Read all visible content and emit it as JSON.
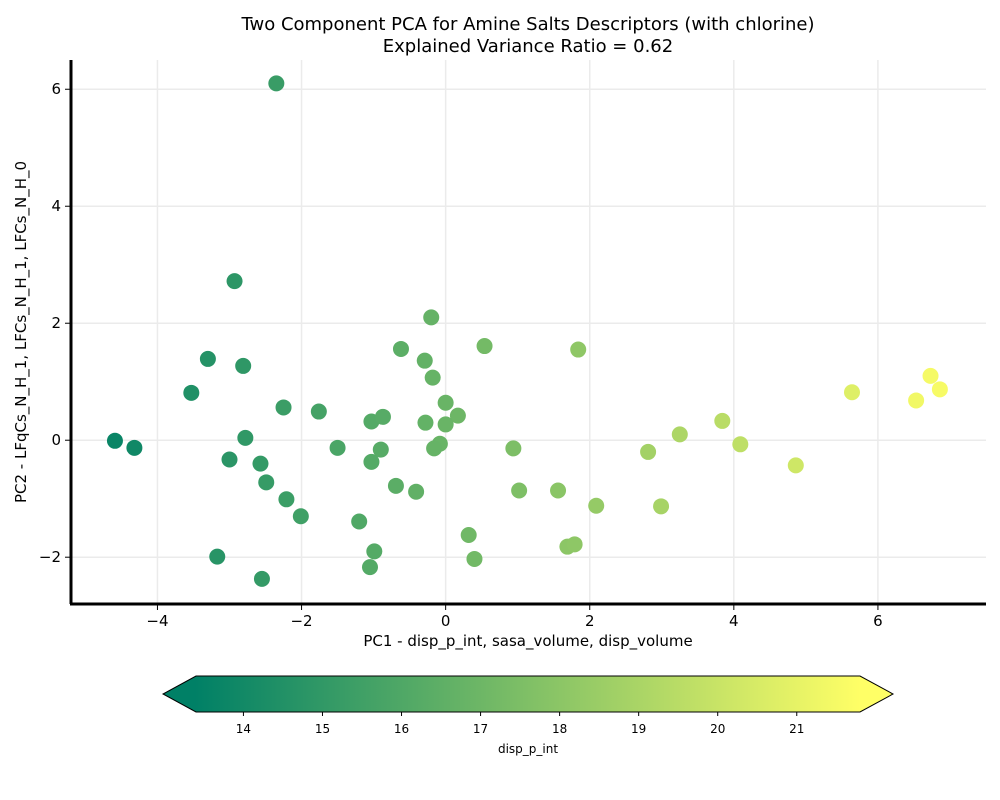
{
  "chart_data": {
    "type": "scatter",
    "title_line1": "Two Component PCA for Amine Salts Descriptors (with chlorine)",
    "title_line2": "Explained Variance Ratio = 0.62",
    "xlabel": "PC1 - disp_p_int, sasa_volume, disp_volume",
    "ylabel": "PC2 - LFqCs_N_H_1, LFCs_N_H_1, LFCs_N_H_0",
    "xlim": [
      -5.2,
      7.5
    ],
    "ylim": [
      -2.8,
      6.5
    ],
    "xticks": [
      -4,
      -2,
      0,
      2,
      4,
      6
    ],
    "yticks": [
      -2,
      0,
      2,
      4,
      6
    ],
    "xtick_labels": [
      "−4",
      "−2",
      "0",
      "2",
      "4",
      "6"
    ],
    "ytick_labels": [
      "−2",
      "0",
      "2",
      "4",
      "6"
    ],
    "grid": true,
    "colorbar": {
      "label": "disp_p_int",
      "colormap": "summer",
      "vmin": 13.4,
      "vmax": 21.8,
      "ticks": [
        14,
        15,
        16,
        17,
        18,
        19,
        20,
        21
      ],
      "tick_labels": [
        "14",
        "15",
        "16",
        "17",
        "18",
        "19",
        "20",
        "21"
      ],
      "color_low": "#008066",
      "color_high": "#ffff66"
    },
    "points": [
      {
        "x": -2.35,
        "y": 6.1
      },
      {
        "x": -2.93,
        "y": 2.72
      },
      {
        "x": -3.3,
        "y": 1.39
      },
      {
        "x": -2.81,
        "y": 1.27
      },
      {
        "x": -3.53,
        "y": 0.81
      },
      {
        "x": -4.59,
        "y": -0.01
      },
      {
        "x": -4.32,
        "y": -0.13
      },
      {
        "x": -2.78,
        "y": 0.04
      },
      {
        "x": -3.0,
        "y": -0.33
      },
      {
        "x": -2.57,
        "y": -0.4
      },
      {
        "x": -2.49,
        "y": -0.72
      },
      {
        "x": -2.21,
        "y": -1.01
      },
      {
        "x": -2.01,
        "y": -1.3
      },
      {
        "x": -3.17,
        "y": -1.99
      },
      {
        "x": -2.55,
        "y": -2.37
      },
      {
        "x": -2.25,
        "y": 0.56
      },
      {
        "x": -1.76,
        "y": 0.49
      },
      {
        "x": -1.5,
        "y": -0.13
      },
      {
        "x": -1.2,
        "y": -1.39
      },
      {
        "x": -1.03,
        "y": 0.32
      },
      {
        "x": -0.87,
        "y": 0.4
      },
      {
        "x": -0.9,
        "y": -0.16
      },
      {
        "x": -1.03,
        "y": -0.37
      },
      {
        "x": -0.69,
        "y": -0.78
      },
      {
        "x": -0.99,
        "y": -1.9
      },
      {
        "x": -1.05,
        "y": -2.17
      },
      {
        "x": -0.62,
        "y": 1.56
      },
      {
        "x": -0.2,
        "y": 2.1
      },
      {
        "x": -0.29,
        "y": 1.36
      },
      {
        "x": -0.18,
        "y": 1.07
      },
      {
        "x": 0.0,
        "y": 0.64
      },
      {
        "x": 0.17,
        "y": 0.42
      },
      {
        "x": -0.28,
        "y": 0.3
      },
      {
        "x": 0.0,
        "y": 0.27
      },
      {
        "x": -0.08,
        "y": -0.06
      },
      {
        "x": -0.16,
        "y": -0.14
      },
      {
        "x": -0.41,
        "y": -0.88
      },
      {
        "x": 0.32,
        "y": -1.62
      },
      {
        "x": 0.4,
        "y": -2.03
      },
      {
        "x": 0.54,
        "y": 1.61
      },
      {
        "x": 0.94,
        "y": -0.14
      },
      {
        "x": 1.02,
        "y": -0.86
      },
      {
        "x": 1.56,
        "y": -0.86
      },
      {
        "x": 1.84,
        "y": 1.55
      },
      {
        "x": 1.69,
        "y": -1.82
      },
      {
        "x": 1.79,
        "y": -1.78
      },
      {
        "x": 2.09,
        "y": -1.12
      },
      {
        "x": 2.81,
        "y": -0.2
      },
      {
        "x": 2.99,
        "y": -1.13
      },
      {
        "x": 3.25,
        "y": 0.1
      },
      {
        "x": 3.84,
        "y": 0.33
      },
      {
        "x": 4.09,
        "y": -0.07
      },
      {
        "x": 4.86,
        "y": -0.43
      },
      {
        "x": 5.64,
        "y": 0.82
      },
      {
        "x": 6.53,
        "y": 0.68
      },
      {
        "x": 6.73,
        "y": 1.1
      },
      {
        "x": 6.86,
        "y": 0.87
      }
    ]
  }
}
